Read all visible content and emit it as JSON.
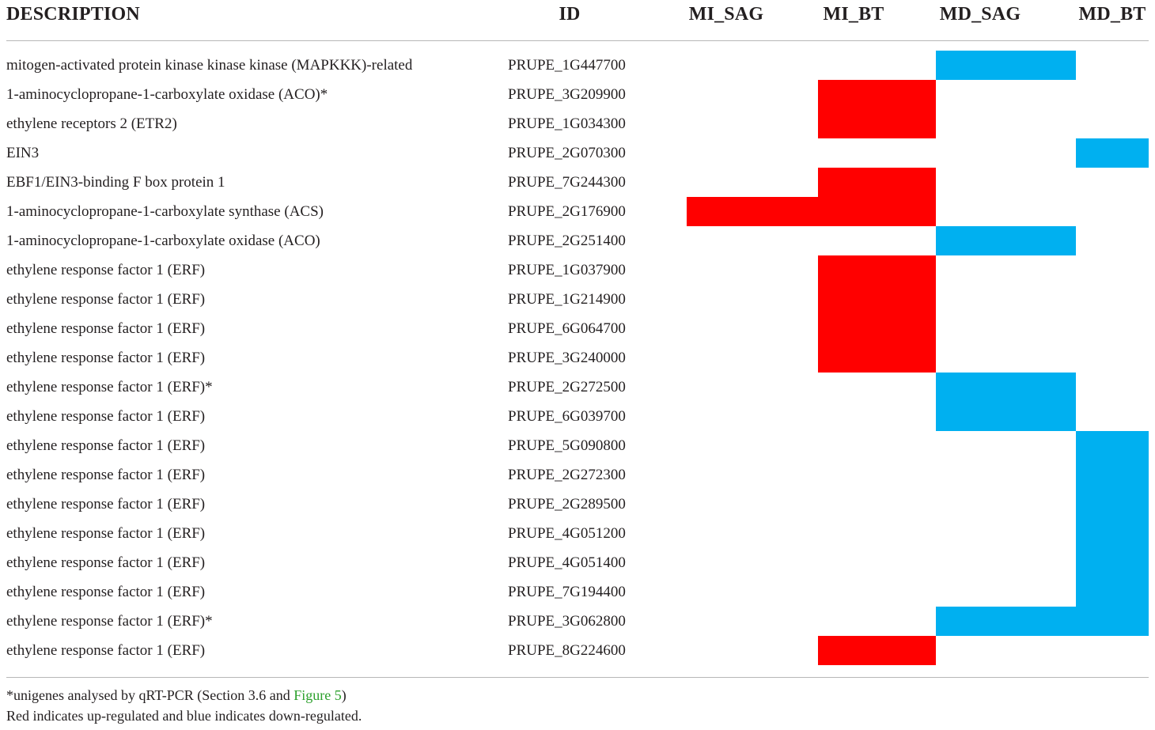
{
  "table": {
    "headers": {
      "description": "DESCRIPTION",
      "id": "ID",
      "mi_sag": "MI_SAG",
      "mi_bt": "MI_BT",
      "md_sag": "MD_SAG",
      "md_bt": "MD_BT"
    },
    "colors": {
      "up": "#ff0000",
      "down": "#00b0f0"
    },
    "rows": [
      {
        "description": "mitogen-activated protein kinase kinase kinase (MAPKKK)-related",
        "id": "PRUPE_1G447700",
        "mi_sag": "",
        "mi_bt": "",
        "md_sag": "down",
        "md_bt": ""
      },
      {
        "description": "1-aminocyclopropane-1-carboxylate oxidase (ACO)*",
        "id": "PRUPE_3G209900",
        "mi_sag": "",
        "mi_bt": "up",
        "md_sag": "",
        "md_bt": ""
      },
      {
        "description": "ethylene receptors 2 (ETR2)",
        "id": "PRUPE_1G034300",
        "mi_sag": "",
        "mi_bt": "up",
        "md_sag": "",
        "md_bt": ""
      },
      {
        "description": "EIN3",
        "id": "PRUPE_2G070300",
        "mi_sag": "",
        "mi_bt": "",
        "md_sag": "",
        "md_bt": "down"
      },
      {
        "description": "EBF1/EIN3-binding F box protein 1",
        "id": "PRUPE_7G244300",
        "mi_sag": "",
        "mi_bt": "up",
        "md_sag": "",
        "md_bt": ""
      },
      {
        "description": "1-aminocyclopropane-1-carboxylate synthase (ACS)",
        "id": "PRUPE_2G176900",
        "mi_sag": "up",
        "mi_bt": "up",
        "md_sag": "",
        "md_bt": ""
      },
      {
        "description": "1-aminocyclopropane-1-carboxylate oxidase (ACO)",
        "id": "PRUPE_2G251400",
        "mi_sag": "",
        "mi_bt": "",
        "md_sag": "down",
        "md_bt": ""
      },
      {
        "description": "ethylene response factor 1 (ERF)",
        "id": "PRUPE_1G037900",
        "mi_sag": "",
        "mi_bt": "up",
        "md_sag": "",
        "md_bt": ""
      },
      {
        "description": "ethylene response factor 1 (ERF)",
        "id": "PRUPE_1G214900",
        "mi_sag": "",
        "mi_bt": "up",
        "md_sag": "",
        "md_bt": ""
      },
      {
        "description": "ethylene response factor 1 (ERF)",
        "id": "PRUPE_6G064700",
        "mi_sag": "",
        "mi_bt": "up",
        "md_sag": "",
        "md_bt": ""
      },
      {
        "description": "ethylene response factor 1 (ERF)",
        "id": "PRUPE_3G240000",
        "mi_sag": "",
        "mi_bt": "up",
        "md_sag": "",
        "md_bt": ""
      },
      {
        "description": "ethylene response factor 1 (ERF)*",
        "id": "PRUPE_2G272500",
        "mi_sag": "",
        "mi_bt": "",
        "md_sag": "down",
        "md_bt": ""
      },
      {
        "description": "ethylene response factor 1 (ERF)",
        "id": "PRUPE_6G039700",
        "mi_sag": "",
        "mi_bt": "",
        "md_sag": "down",
        "md_bt": ""
      },
      {
        "description": "ethylene response factor 1 (ERF)",
        "id": "PRUPE_5G090800",
        "mi_sag": "",
        "mi_bt": "",
        "md_sag": "",
        "md_bt": "down"
      },
      {
        "description": "ethylene response factor 1 (ERF)",
        "id": "PRUPE_2G272300",
        "mi_sag": "",
        "mi_bt": "",
        "md_sag": "",
        "md_bt": "down"
      },
      {
        "description": "ethylene response factor 1 (ERF)",
        "id": "PRUPE_2G289500",
        "mi_sag": "",
        "mi_bt": "",
        "md_sag": "",
        "md_bt": "down"
      },
      {
        "description": "ethylene response factor 1 (ERF)",
        "id": "PRUPE_4G051200",
        "mi_sag": "",
        "mi_bt": "",
        "md_sag": "",
        "md_bt": "down"
      },
      {
        "description": "ethylene response factor 1 (ERF)",
        "id": "PRUPE_4G051400",
        "mi_sag": "",
        "mi_bt": "",
        "md_sag": "",
        "md_bt": "down"
      },
      {
        "description": "ethylene response factor 1 (ERF)",
        "id": "PRUPE_7G194400",
        "mi_sag": "",
        "mi_bt": "",
        "md_sag": "",
        "md_bt": "down"
      },
      {
        "description": "ethylene response factor 1 (ERF)*",
        "id": "PRUPE_3G062800",
        "mi_sag": "",
        "mi_bt": "",
        "md_sag": "down",
        "md_bt": "down"
      },
      {
        "description": "ethylene response factor 1 (ERF)",
        "id": "PRUPE_8G224600",
        "mi_sag": "",
        "mi_bt": "up",
        "md_sag": "",
        "md_bt": ""
      }
    ]
  },
  "footnotes": {
    "line1_prefix": "*unigenes analysed by qRT-PCR (Section 3.6 and ",
    "line1_link": "Figure 5",
    "line1_suffix": ")",
    "line2": "Red indicates up-regulated and blue indicates down-regulated."
  }
}
